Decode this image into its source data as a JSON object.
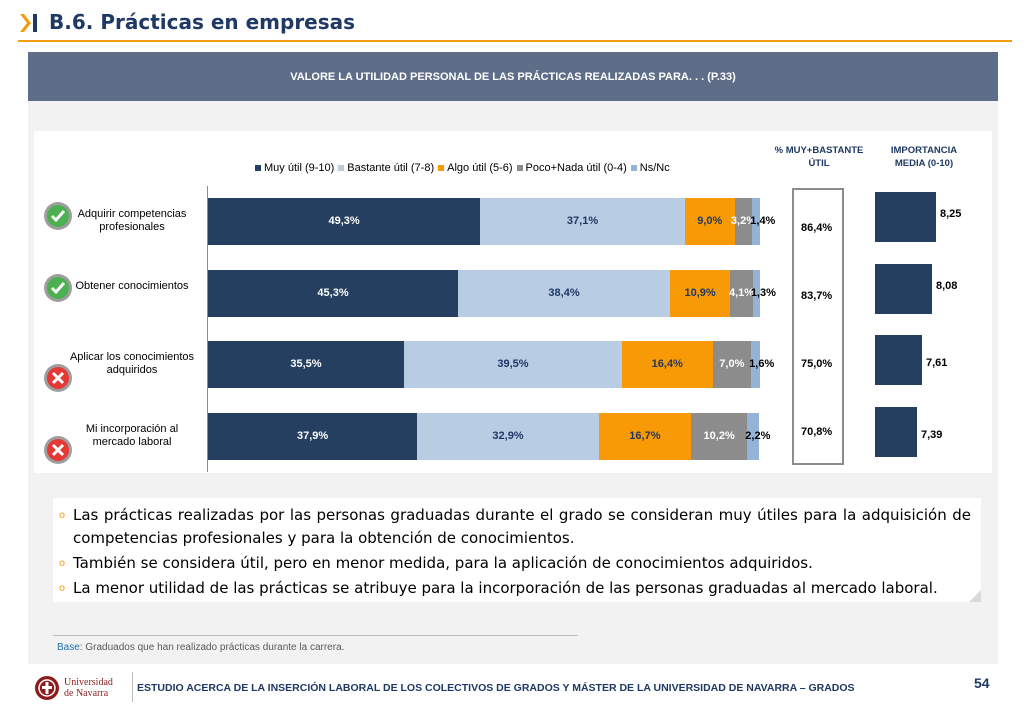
{
  "page": {
    "title": "B.6. Prácticas en empresas",
    "chart_header": "VALORE LA UTILIDAD PERSONAL DE LAS PRÁCTICAS REALIZADAS PARA. . . (P.33)",
    "col_pct_header_1": "% MUY+BASTANTE",
    "col_pct_header_2": "ÚTIL",
    "col_imp_header_1": "IMPORTANCIA",
    "col_imp_header_2": "MEDIA (0-10)",
    "bullets": [
      "Las prácticas realizadas por las personas graduadas durante el grado se consideran muy útiles para la adquisición de competencias profesionales y para la obtención de conocimientos.",
      "También se considera útil, pero en menor medida, para la aplicación de conocimientos adquiridos.",
      "La menor utilidad de las prácticas se atribuye para la incorporación de las personas graduadas al mercado laboral."
    ],
    "base_label": "Base:",
    "base_text": "Graduados que han realizado prácticas durante la carrera.",
    "footer": "ESTUDIO ACERCA DE LA INSERCIÓN LABORAL DE LOS COLECTIVOS DE GRADOS Y MÁSTER DE LA UNIVERSIDAD DE NAVARRA – GRADOS",
    "page_number": "54",
    "logo_text_1": "Universidad",
    "logo_text_2": "de Navarra"
  },
  "chart_data": {
    "type": "bar",
    "orientation": "horizontal-stacked-100",
    "categories": [
      "Adquirir competencias profesionales",
      "Obtener conocimientos",
      "Aplicar los conocimientos adquiridos",
      "Mi incorporación al mercado laboral"
    ],
    "category_icons": [
      "check-icon",
      "check-icon",
      "cross-icon",
      "cross-icon"
    ],
    "series": [
      {
        "name": "Muy útil (9-10)",
        "color": "#243f60",
        "text_color": "#ffffff",
        "values": [
          49.3,
          45.3,
          35.5,
          37.9
        ],
        "labels": [
          "49,3%",
          "45,3%",
          "35,5%",
          "37,9%"
        ]
      },
      {
        "name": "Bastante útil (7-8)",
        "color": "#b8cce4",
        "text_color": "#1f3864",
        "values": [
          37.1,
          38.4,
          39.5,
          32.9
        ],
        "labels": [
          "37,1%",
          "38,4%",
          "39,5%",
          "32,9%"
        ]
      },
      {
        "name": "Algo útil (5-6)",
        "color": "#f79a05",
        "text_color": "#1f3864",
        "values": [
          9.0,
          10.9,
          16.4,
          16.7
        ],
        "labels": [
          "9,0%",
          "10,9%",
          "16,4%",
          "16,7%"
        ]
      },
      {
        "name": "Poco+Nada útil (0-4)",
        "color": "#8c8c8c",
        "text_color": "#ffffff",
        "values": [
          3.2,
          4.1,
          7.0,
          10.2
        ],
        "labels": [
          "3,2%",
          "4,1%",
          "7,0%",
          "10,2%"
        ]
      },
      {
        "name": "Ns/Nc",
        "color": "#95b3d7",
        "text_color": "#000000",
        "values": [
          1.4,
          1.3,
          1.6,
          2.2
        ],
        "labels": [
          "1,4%",
          "1,3%",
          "1,6%",
          "2,2%"
        ]
      }
    ],
    "pct_muy_bastante": [
      "86,4%",
      "83,7%",
      "75,0%",
      "70,8%"
    ],
    "importancia_media": [
      8.25,
      8.08,
      7.61,
      7.39
    ],
    "importancia_labels": [
      "8,25",
      "8,08",
      "7,61",
      "7,39"
    ],
    "legend_position": "top"
  }
}
